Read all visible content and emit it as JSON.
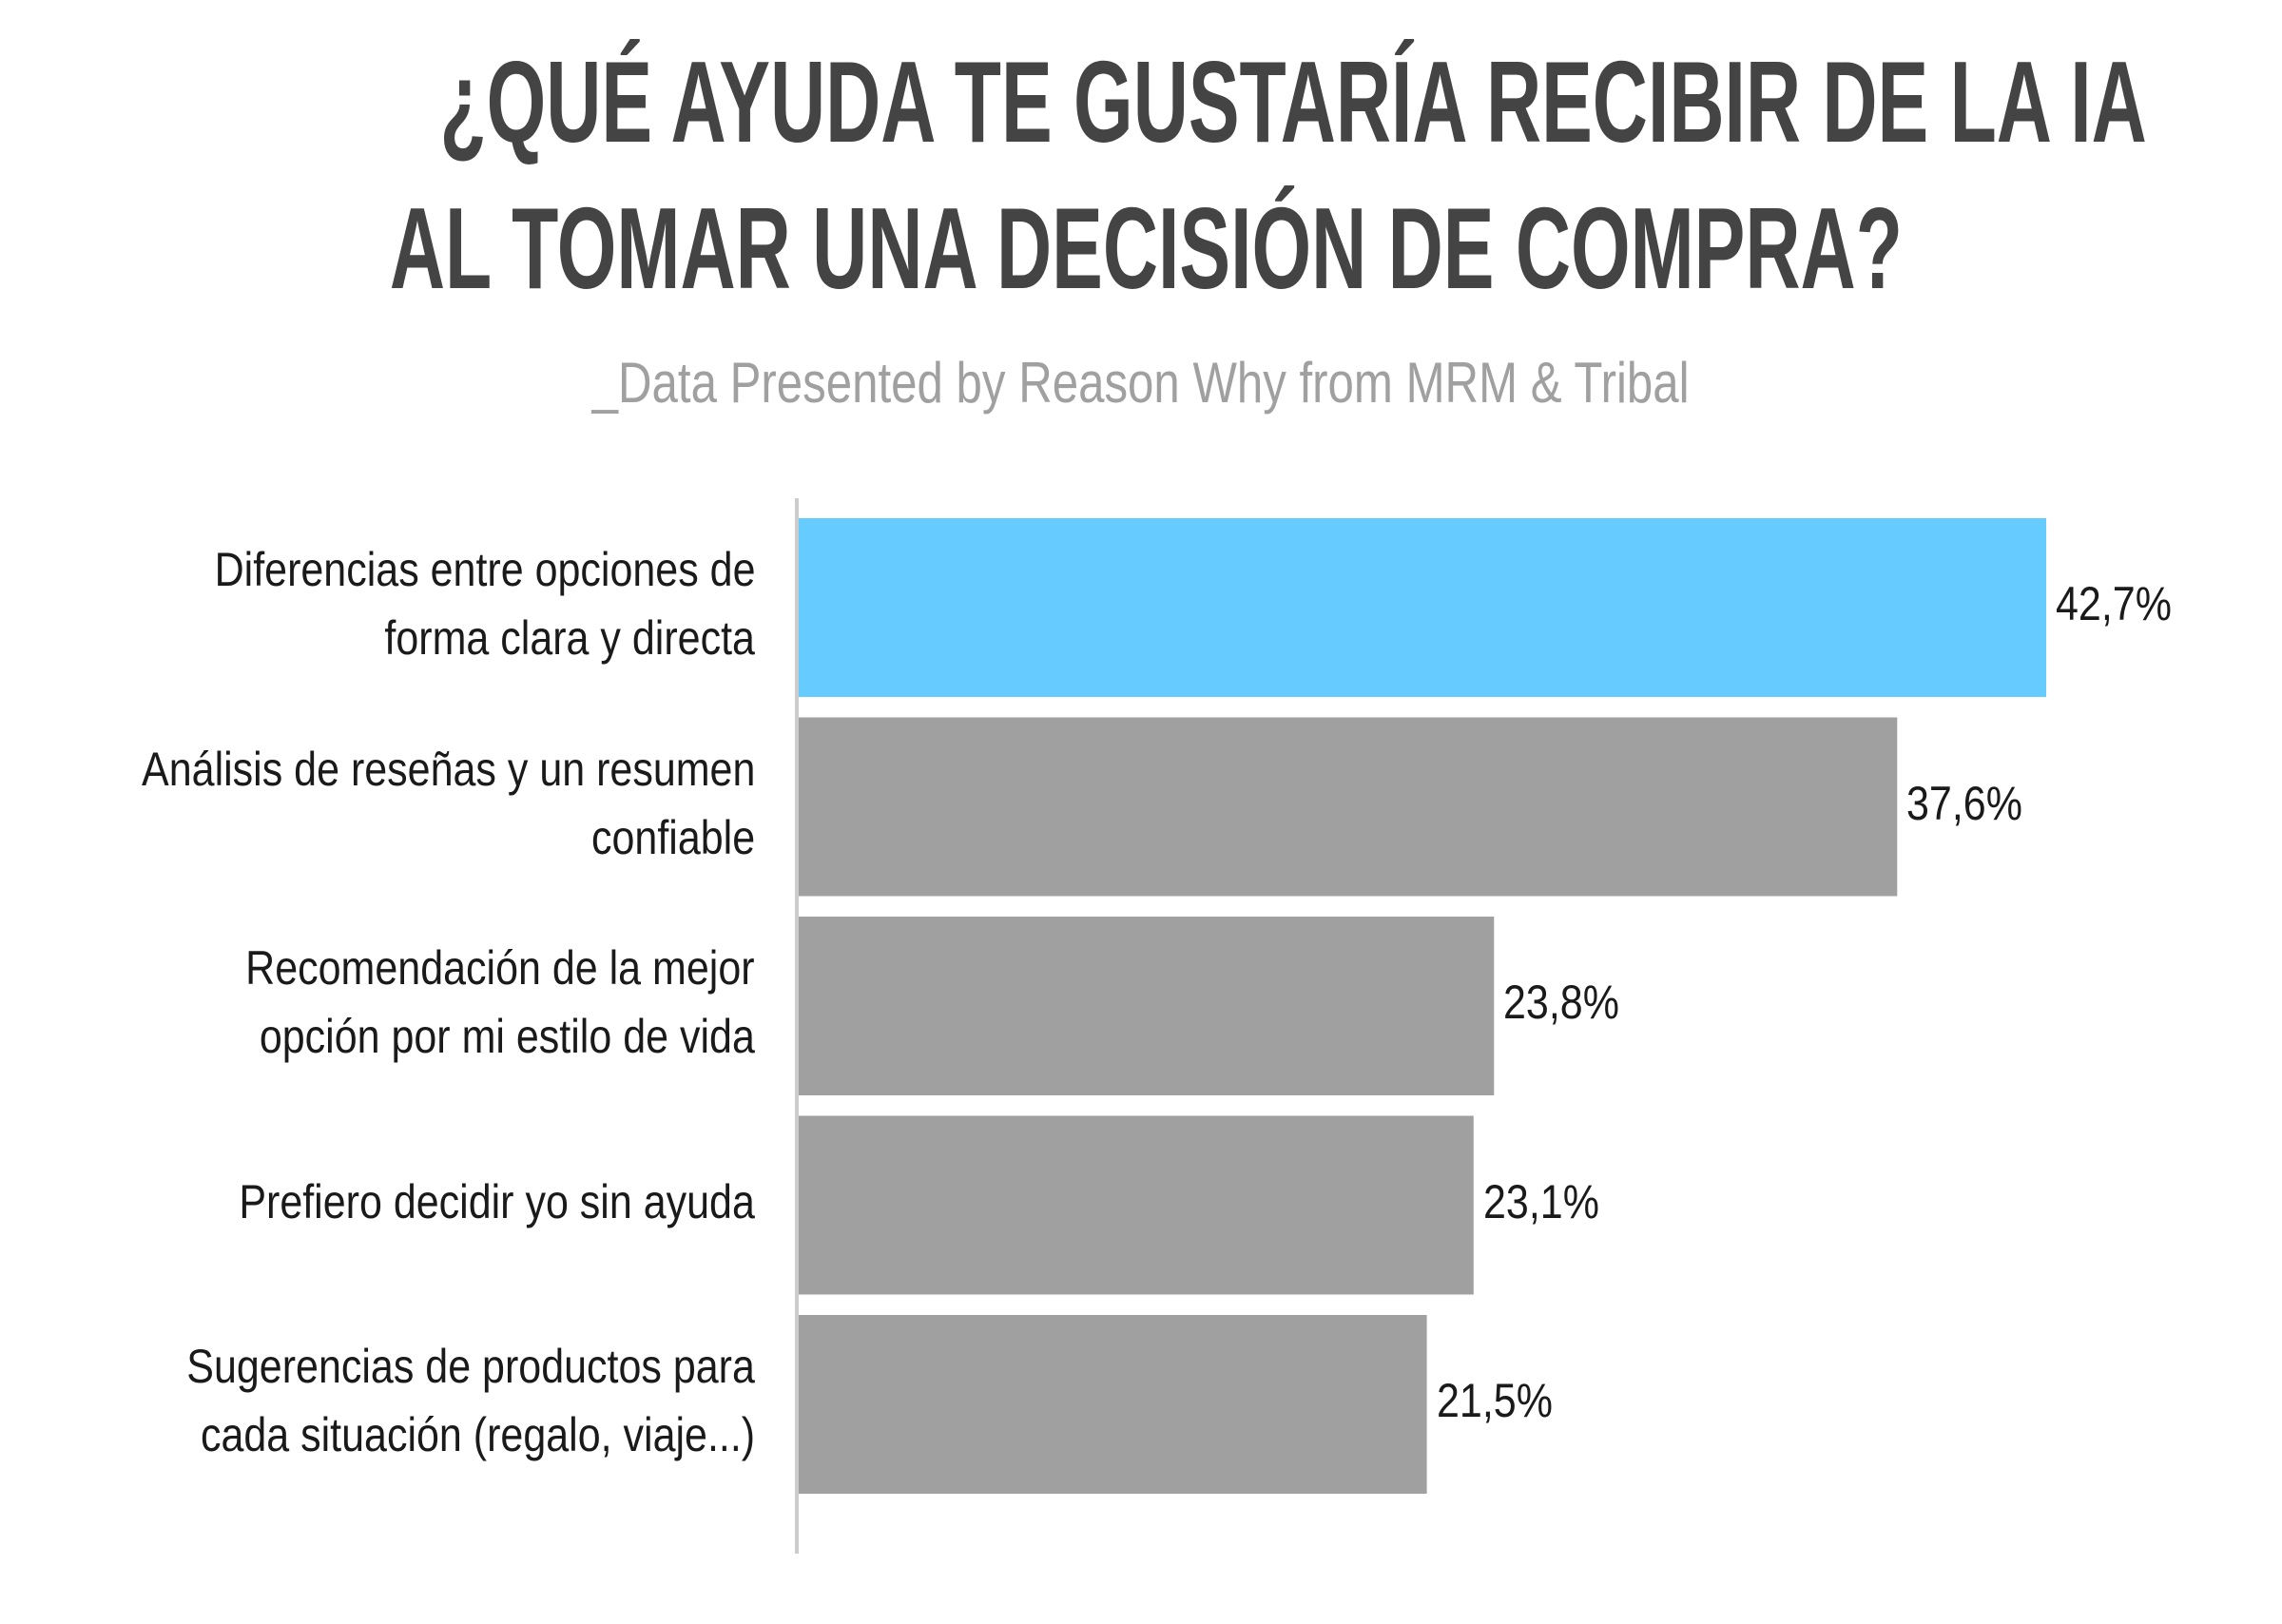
{
  "title_lines": [
    "¿QUÉ AYUDA TE GUSTARÍA RECIBIR DE LA IA",
    "AL TOMAR UNA DECISIÓN DE COMPRA?"
  ],
  "subtitle": "_Data Presented by Reason Why from MRM & Tribal",
  "colors": {
    "highlight": "#66ccff",
    "bar": "#a0a0a0",
    "axis": "#cccccc",
    "title": "#444444",
    "subtitle": "#a0a0a0"
  },
  "chart_data": {
    "type": "bar",
    "orientation": "horizontal",
    "title": "¿QUÉ AYUDA TE GUSTARÍA RECIBIR DE LA IA AL TOMAR UNA DECISIÓN DE COMPRA?",
    "subtitle": "_Data Presented by Reason Why from MRM & Tribal",
    "categories": [
      [
        "Diferencias entre opciones de",
        "forma clara y directa"
      ],
      [
        "Análisis de reseñas y un resumen",
        "confiable"
      ],
      [
        "Recomendación de la mejor",
        "opción por mi estilo de vida"
      ],
      [
        "Prefiero decidir yo sin ayuda"
      ],
      [
        "Sugerencias de productos para",
        "cada situación (regalo, viaje...)"
      ]
    ],
    "values": [
      42.7,
      37.6,
      23.8,
      23.1,
      21.5
    ],
    "value_labels": [
      "42,7%",
      "37,6%",
      "23,8%",
      "23,1%",
      "21,5%"
    ],
    "highlighted_index": 0,
    "unit": "%",
    "xlim": [
      0,
      42.7
    ],
    "xlabel": "",
    "ylabel": "",
    "grid": false,
    "legend": "none"
  }
}
